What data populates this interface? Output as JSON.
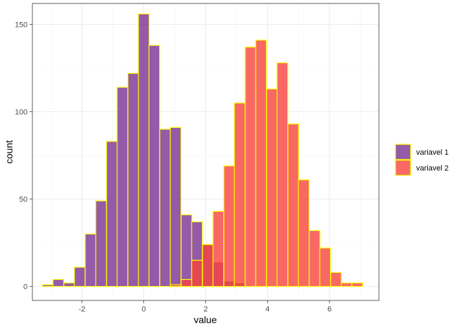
{
  "chart_data": {
    "type": "histogram",
    "xlabel": "value",
    "ylabel": "count",
    "xlim": [
      -3.6,
      7.6
    ],
    "ylim": [
      -8,
      162
    ],
    "x_ticks": [
      -2,
      0,
      2,
      4,
      6
    ],
    "x_tick_labels": [
      "-2",
      "0",
      "2",
      "4",
      "6"
    ],
    "y_ticks": [
      0,
      50,
      100,
      150
    ],
    "y_tick_labels": [
      "0",
      "50",
      "100",
      "150"
    ],
    "bin_width": 0.3448,
    "grid": true,
    "bar_outline_color": "#FFFF00",
    "legend_position": "right",
    "series": [
      {
        "name": "variavel 1",
        "color": "#7B3294",
        "bin_centers": [
          -3.1,
          -2.76,
          -2.41,
          -2.07,
          -1.72,
          -1.38,
          -1.03,
          -0.69,
          -0.34,
          0.0,
          0.34,
          0.69,
          1.03,
          1.38,
          1.72,
          2.07,
          2.41,
          2.76,
          3.1,
          3.45
        ],
        "values": [
          1,
          4,
          2,
          11,
          30,
          49,
          83,
          114,
          122,
          156,
          138,
          90,
          91,
          41,
          37,
          24,
          14,
          3,
          2,
          0
        ]
      },
      {
        "name": "variavel 2",
        "color": "#F8433D",
        "bin_centers": [
          1.03,
          1.38,
          1.72,
          2.07,
          2.41,
          2.76,
          3.1,
          3.45,
          3.79,
          4.14,
          4.48,
          4.83,
          5.17,
          5.52,
          5.86,
          6.21,
          6.55,
          6.9
        ],
        "values": [
          1,
          4,
          15,
          24,
          43,
          69,
          105,
          137,
          141,
          113,
          128,
          93,
          61,
          32,
          22,
          8,
          2,
          2
        ]
      }
    ]
  }
}
